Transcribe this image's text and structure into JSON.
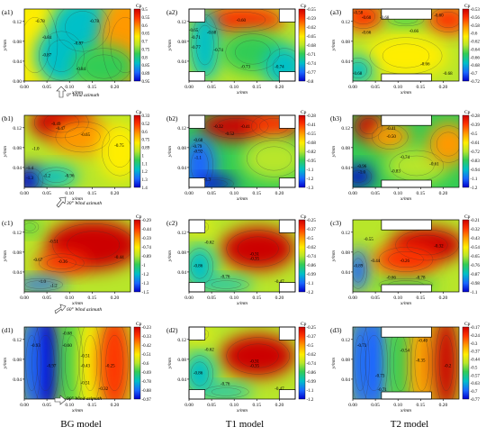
{
  "figure": {
    "columns": [
      {
        "label": "BG model"
      },
      {
        "label": "T1 model"
      },
      {
        "label": "T2 model"
      }
    ],
    "row_captions": [
      "0° Wind azimuth",
      "30° Wind azimuth",
      "60° Wind azimuth",
      "90° Wind azimuth"
    ]
  },
  "chart_data": [
    {
      "type": "heatmap",
      "panel_label": "(a1)",
      "xlabel": "x/mm",
      "ylabel": "y/mm",
      "xticks": [
        0.0,
        0.05,
        0.1,
        0.15,
        0.2
      ],
      "yticks": [
        0.0,
        0.04,
        0.08,
        0.12
      ],
      "colorbar_title": "Cp",
      "colorbar_ticks": [
        0.5,
        0.55,
        0.6,
        0.65,
        0.7,
        0.75,
        0.8,
        0.85,
        0.89,
        0.95
      ],
      "contour_labels": [
        {
          "text": "-0.78",
          "x": 0.035,
          "y": 0.118
        },
        {
          "text": "-0.78",
          "x": 0.155,
          "y": 0.118
        },
        {
          "text": "-0.84",
          "x": 0.05,
          "y": 0.085
        },
        {
          "text": "-0.87",
          "x": 0.12,
          "y": 0.073
        },
        {
          "text": "-0.87",
          "x": 0.05,
          "y": 0.05
        },
        {
          "text": "-0.84",
          "x": 0.125,
          "y": 0.022
        }
      ]
    },
    {
      "type": "heatmap",
      "panel_label": "(a2)",
      "xlabel": "x/mm",
      "ylabel": "y/mm",
      "xticks": [
        0.0,
        0.05,
        0.1,
        0.15,
        0.2
      ],
      "yticks": [
        0.04,
        0.08,
        0.12
      ],
      "colorbar_title": "Cp",
      "colorbar_ticks": [
        -0.55,
        -0.59,
        -0.62,
        -0.65,
        -0.68,
        -0.71,
        -0.74,
        -0.77,
        -0.8
      ],
      "contour_labels": [
        {
          "text": "-0.60",
          "x": 0.115,
          "y": 0.12
        },
        {
          "text": "-0.65",
          "x": 0.01,
          "y": 0.1
        },
        {
          "text": "-0.68",
          "x": 0.05,
          "y": 0.095
        },
        {
          "text": "-0.71",
          "x": 0.015,
          "y": 0.085
        },
        {
          "text": "-0.74",
          "x": 0.065,
          "y": 0.06
        },
        {
          "text": "-0.77",
          "x": 0.015,
          "y": 0.065
        },
        {
          "text": "-0.73",
          "x": 0.125,
          "y": 0.026
        },
        {
          "text": "-0.74",
          "x": 0.2,
          "y": 0.026
        }
      ]
    },
    {
      "type": "heatmap",
      "panel_label": "(a3)",
      "xlabel": "x/mm",
      "ylabel": "y/mm",
      "xticks": [
        0.0,
        0.05,
        0.1,
        0.15,
        0.2
      ],
      "yticks": [
        0.04,
        0.08,
        0.12
      ],
      "colorbar_title": "Cp",
      "colorbar_ticks": [
        -0.53,
        -0.56,
        -0.58,
        -0.6,
        -0.62,
        -0.64,
        -0.66,
        -0.68,
        -0.7,
        -0.72
      ],
      "contour_labels": [
        {
          "text": "-0.58",
          "x": 0.012,
          "y": 0.135
        },
        {
          "text": "-0.60",
          "x": 0.03,
          "y": 0.125
        },
        {
          "text": "-0.68",
          "x": 0.07,
          "y": 0.125
        },
        {
          "text": "-0.60",
          "x": 0.19,
          "y": 0.13
        },
        {
          "text": "-0.66",
          "x": 0.03,
          "y": 0.095
        },
        {
          "text": "-0.66",
          "x": 0.135,
          "y": 0.098
        },
        {
          "text": "-0.66",
          "x": 0.16,
          "y": 0.032
        },
        {
          "text": "-0.68",
          "x": 0.01,
          "y": 0.013
        },
        {
          "text": "-0.68",
          "x": 0.21,
          "y": 0.013
        }
      ]
    },
    {
      "type": "heatmap",
      "panel_label": "(b1)",
      "xlabel": "x/mm",
      "ylabel": "y/mm",
      "xticks": [
        0.0,
        0.05,
        0.1,
        0.15,
        0.2
      ],
      "yticks": [
        0.04,
        0.08,
        0.12
      ],
      "colorbar_title": "Cp",
      "colorbar_ticks": [
        0.33,
        0.52,
        0.6,
        0.75,
        0.89,
        1.0,
        1.1,
        1.2,
        1.3,
        1.4
      ],
      "contour_labels": [
        {
          "text": "-0.49",
          "x": 0.07,
          "y": 0.125
        },
        {
          "text": "-0.47",
          "x": 0.08,
          "y": 0.116
        },
        {
          "text": "-0.65",
          "x": 0.135,
          "y": 0.103
        },
        {
          "text": "-0.75",
          "x": 0.21,
          "y": 0.082
        },
        {
          "text": "-1.0",
          "x": 0.025,
          "y": 0.075
        },
        {
          "text": "-0.96",
          "x": 0.1,
          "y": 0.021
        },
        {
          "text": "-1.2",
          "x": 0.05,
          "y": 0.021
        },
        {
          "text": "-1.4",
          "x": 0.012,
          "y": 0.036
        },
        {
          "text": "-1.3",
          "x": 0.012,
          "y": 0.016
        }
      ]
    },
    {
      "type": "heatmap",
      "panel_label": "(b2)",
      "xlabel": "x/mm",
      "ylabel": "y/mm",
      "xticks": [
        0.0,
        0.05,
        0.1,
        0.15,
        0.2
      ],
      "yticks": [
        0.04,
        0.08,
        0.12
      ],
      "colorbar_title": "Cp",
      "colorbar_ticks": [
        -0.28,
        -0.41,
        -0.55,
        -0.68,
        -0.82,
        -0.95,
        -1.1,
        -1.2,
        -1.3
      ],
      "contour_labels": [
        {
          "text": "-0.32",
          "x": 0.065,
          "y": 0.12
        },
        {
          "text": "-0.41",
          "x": 0.125,
          "y": 0.12
        },
        {
          "text": "-0.52",
          "x": 0.09,
          "y": 0.105
        },
        {
          "text": "-0.68",
          "x": 0.02,
          "y": 0.092
        },
        {
          "text": "-0.79",
          "x": 0.018,
          "y": 0.08
        },
        {
          "text": "-0.92",
          "x": 0.02,
          "y": 0.07
        },
        {
          "text": "-1.1",
          "x": 0.02,
          "y": 0.057
        },
        {
          "text": "-1.3",
          "x": 0.04,
          "y": 0.014
        }
      ]
    },
    {
      "type": "heatmap",
      "panel_label": "(b3)",
      "xlabel": "x/mm",
      "ylabel": "y/mm",
      "xticks": [
        0.0,
        0.05,
        0.1,
        0.15,
        0.2
      ],
      "yticks": [
        0.04,
        0.08,
        0.12
      ],
      "colorbar_title": "Cp",
      "colorbar_ticks": [
        -0.28,
        -0.39,
        -0.5,
        -0.61,
        -0.72,
        -0.83,
        -0.94,
        -1.1,
        -1.2
      ],
      "contour_labels": [
        {
          "text": "-0.41",
          "x": 0.085,
          "y": 0.116
        },
        {
          "text": "-0.50",
          "x": 0.085,
          "y": 0.1
        },
        {
          "text": "-0.74",
          "x": 0.115,
          "y": 0.058
        },
        {
          "text": "-0.61",
          "x": 0.18,
          "y": 0.044
        },
        {
          "text": "-0.96",
          "x": 0.02,
          "y": 0.04
        },
        {
          "text": "-1.0",
          "x": 0.02,
          "y": 0.028
        },
        {
          "text": "-0.83",
          "x": 0.095,
          "y": 0.03
        }
      ]
    },
    {
      "type": "heatmap",
      "panel_label": "(c1)",
      "xlabel": "x/mm",
      "ylabel": "y/mm",
      "xticks": [
        0.0,
        0.05,
        0.1,
        0.15,
        0.2
      ],
      "yticks": [
        0.04,
        0.08,
        0.12
      ],
      "colorbar_title": "Cp",
      "colorbar_ticks": [
        -0.29,
        -0.44,
        -0.59,
        -0.74,
        -0.89,
        -1.0,
        -1.2,
        -1.3,
        -1.5
      ],
      "contour_labels": [
        {
          "text": "-0.51",
          "x": 0.065,
          "y": 0.099
        },
        {
          "text": "-0.67",
          "x": 0.03,
          "y": 0.062
        },
        {
          "text": "-0.36",
          "x": 0.085,
          "y": 0.058
        },
        {
          "text": "-0.44",
          "x": 0.21,
          "y": 0.067
        },
        {
          "text": "-1.0",
          "x": 0.04,
          "y": 0.018
        },
        {
          "text": "-1.2",
          "x": 0.065,
          "y": 0.01
        }
      ]
    },
    {
      "type": "heatmap",
      "panel_label": "(c2)",
      "xlabel": "x/mm",
      "ylabel": "y/mm",
      "xticks": [
        0.0,
        0.05,
        0.1,
        0.15,
        0.2
      ],
      "yticks": [
        0.04,
        0.08,
        0.12
      ],
      "colorbar_title": "Cp",
      "colorbar_ticks": [
        -0.25,
        -0.37,
        -0.5,
        -0.62,
        -0.74,
        -0.86,
        -0.99,
        -1.1,
        -1.2
      ],
      "contour_labels": [
        {
          "text": "-0.62",
          "x": 0.045,
          "y": 0.097
        },
        {
          "text": "-0.31",
          "x": 0.145,
          "y": 0.073
        },
        {
          "text": "-0.35",
          "x": 0.145,
          "y": 0.064
        },
        {
          "text": "-0.86",
          "x": 0.02,
          "y": 0.05
        },
        {
          "text": "-0.76",
          "x": 0.08,
          "y": 0.028
        },
        {
          "text": "-0.47",
          "x": 0.2,
          "y": 0.018
        }
      ]
    },
    {
      "type": "heatmap",
      "panel_label": "(c3)",
      "xlabel": "x/mm",
      "ylabel": "y/mm",
      "xticks": [
        0.0,
        0.05,
        0.1,
        0.15,
        0.2
      ],
      "yticks": [
        0.04,
        0.08,
        0.12
      ],
      "colorbar_title": "Cp",
      "colorbar_ticks": [
        -0.21,
        -0.32,
        -0.43,
        -0.54,
        -0.65,
        -0.76,
        -0.87,
        -0.98,
        -1.1
      ],
      "contour_labels": [
        {
          "text": "-0.55",
          "x": 0.035,
          "y": 0.103
        },
        {
          "text": "-0.32",
          "x": 0.19,
          "y": 0.09
        },
        {
          "text": "-0.44",
          "x": 0.05,
          "y": 0.06
        },
        {
          "text": "-0.26",
          "x": 0.115,
          "y": 0.06
        },
        {
          "text": "-0.89",
          "x": 0.012,
          "y": 0.05
        },
        {
          "text": "-0.66",
          "x": 0.085,
          "y": 0.026
        },
        {
          "text": "-0.78",
          "x": 0.15,
          "y": 0.026
        }
      ]
    },
    {
      "type": "heatmap",
      "panel_label": "(d1)",
      "xlabel": "x/mm",
      "ylabel": "y/mm",
      "xticks": [
        0.0,
        0.05,
        0.1,
        0.15,
        0.2
      ],
      "yticks": [
        0.04,
        0.08,
        0.12
      ],
      "colorbar_title": "Cp",
      "colorbar_ticks": [
        -0.23,
        -0.33,
        -0.42,
        -0.51,
        -0.6,
        -0.69,
        -0.78,
        -0.88,
        -0.97
      ],
      "contour_labels": [
        {
          "text": "-0.68",
          "x": 0.095,
          "y": 0.13
        },
        {
          "text": "-0.93",
          "x": 0.025,
          "y": 0.105
        },
        {
          "text": "-0.60",
          "x": 0.095,
          "y": 0.105
        },
        {
          "text": "-0.51",
          "x": 0.135,
          "y": 0.084
        },
        {
          "text": "-0.97",
          "x": 0.06,
          "y": 0.064
        },
        {
          "text": "-0.43",
          "x": 0.135,
          "y": 0.064
        },
        {
          "text": "-0.25",
          "x": 0.19,
          "y": 0.064
        },
        {
          "text": "-0.51",
          "x": 0.135,
          "y": 0.03
        },
        {
          "text": "-0.32",
          "x": 0.175,
          "y": 0.018
        }
      ]
    },
    {
      "type": "heatmap",
      "panel_label": "(d2)",
      "xlabel": "x/mm",
      "ylabel": "y/mm",
      "xticks": [
        0.0,
        0.05,
        0.1,
        0.15,
        0.2
      ],
      "yticks": [
        0.04,
        0.08,
        0.12
      ],
      "colorbar_title": "Cp",
      "colorbar_ticks": [
        -0.25,
        -0.37,
        -0.5,
        -0.62,
        -0.74,
        -0.86,
        -0.99,
        -1.1,
        -1.2
      ],
      "contour_labels": [
        {
          "text": "-0.62",
          "x": 0.045,
          "y": 0.097
        },
        {
          "text": "-0.31",
          "x": 0.145,
          "y": 0.073
        },
        {
          "text": "-0.35",
          "x": 0.145,
          "y": 0.064
        },
        {
          "text": "-0.86",
          "x": 0.02,
          "y": 0.05
        },
        {
          "text": "-0.76",
          "x": 0.08,
          "y": 0.028
        },
        {
          "text": "-0.47",
          "x": 0.2,
          "y": 0.018
        }
      ]
    },
    {
      "type": "heatmap",
      "panel_label": "(d3)",
      "xlabel": "x/mm",
      "ylabel": "y/mm",
      "xticks": [
        0.0,
        0.05,
        0.1,
        0.15,
        0.2
      ],
      "yticks": [
        0.04,
        0.08,
        0.12
      ],
      "colorbar_title": "Cp",
      "colorbar_ticks": [
        -0.17,
        -0.24,
        -0.3,
        -0.37,
        -0.44,
        -0.5,
        -0.57,
        -0.63,
        -0.7,
        -0.77
      ],
      "contour_labels": [
        {
          "text": "-0.73",
          "x": 0.02,
          "y": 0.105
        },
        {
          "text": "-0.54",
          "x": 0.115,
          "y": 0.095
        },
        {
          "text": "-0.40",
          "x": 0.155,
          "y": 0.115
        },
        {
          "text": "-0.35",
          "x": 0.15,
          "y": 0.075
        },
        {
          "text": "-0.73",
          "x": 0.06,
          "y": 0.044
        },
        {
          "text": "-0.71",
          "x": 0.065,
          "y": 0.016
        },
        {
          "text": "-0.2",
          "x": 0.21,
          "y": 0.064
        }
      ]
    }
  ]
}
